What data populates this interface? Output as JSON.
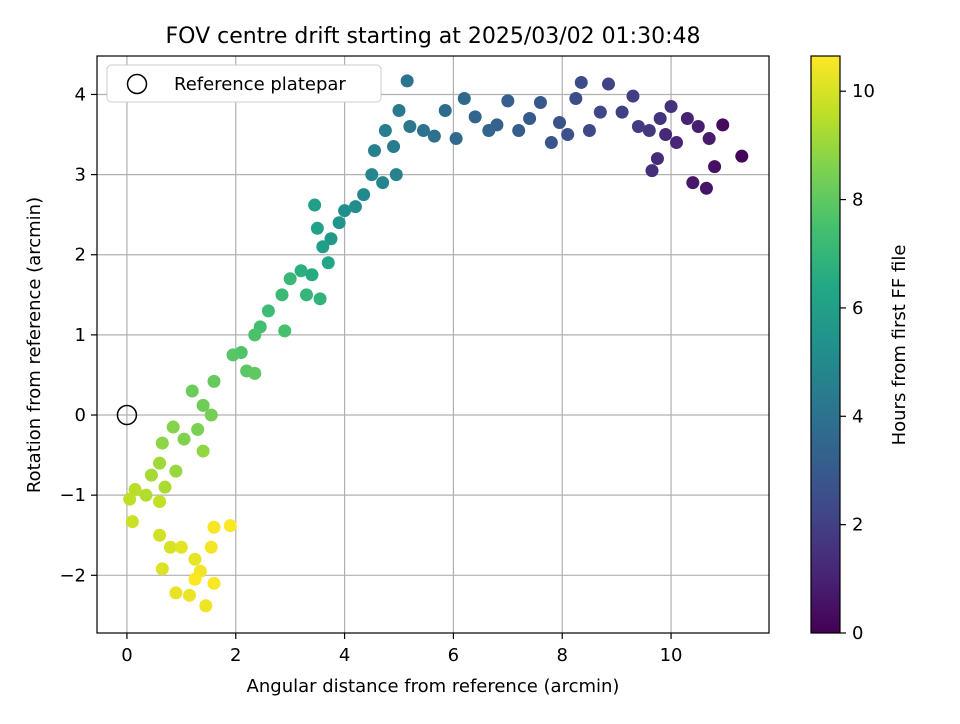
{
  "chart_data": {
    "type": "scatter",
    "title": "FOV centre drift starting at 2025/03/02 01:30:48",
    "xlabel": "Angular distance from reference (arcmin)",
    "ylabel": "Rotation from reference (arcmin)",
    "xlim": [
      -0.55,
      11.8
    ],
    "ylim": [
      -2.72,
      4.48
    ],
    "x_ticks": [
      0,
      2,
      4,
      6,
      8,
      10
    ],
    "y_ticks": [
      -2,
      -1,
      0,
      1,
      2,
      3,
      4
    ],
    "x_tick_labels": [
      "0",
      "2",
      "4",
      "6",
      "8",
      "10"
    ],
    "y_tick_labels": [
      "−2",
      "−1",
      "0",
      "1",
      "2",
      "3",
      "4"
    ],
    "grid": true,
    "legend_position": "top-left",
    "legend": [
      {
        "label": "Reference platepar",
        "marker": "open-circle"
      }
    ],
    "reference_point": {
      "x": 0,
      "y": 0
    },
    "colorbar": {
      "label": "Hours from first FF file",
      "range": [
        0,
        10.65
      ],
      "ticks": [
        0,
        2,
        4,
        6,
        8,
        10
      ],
      "tick_labels": [
        "0",
        "2",
        "4",
        "6",
        "8",
        "10"
      ],
      "colormap": "viridis"
    },
    "series": [
      {
        "points": [
          {
            "x": 11.3,
            "y": 3.23,
            "t": 0.1
          },
          {
            "x": 10.95,
            "y": 3.62,
            "t": 0.3
          },
          {
            "x": 10.8,
            "y": 3.1,
            "t": 0.5
          },
          {
            "x": 10.65,
            "y": 2.83,
            "t": 0.6
          },
          {
            "x": 10.4,
            "y": 2.9,
            "t": 0.7
          },
          {
            "x": 10.7,
            "y": 3.45,
            "t": 0.8
          },
          {
            "x": 10.5,
            "y": 3.6,
            "t": 0.9
          },
          {
            "x": 10.3,
            "y": 3.7,
            "t": 1.0
          },
          {
            "x": 10.1,
            "y": 3.4,
            "t": 1.1
          },
          {
            "x": 9.9,
            "y": 3.5,
            "t": 1.2
          },
          {
            "x": 9.75,
            "y": 3.2,
            "t": 1.3
          },
          {
            "x": 9.65,
            "y": 3.05,
            "t": 1.4
          },
          {
            "x": 10.0,
            "y": 3.85,
            "t": 1.5
          },
          {
            "x": 9.8,
            "y": 3.7,
            "t": 1.6
          },
          {
            "x": 9.6,
            "y": 3.55,
            "t": 1.7
          },
          {
            "x": 9.4,
            "y": 3.6,
            "t": 1.8
          },
          {
            "x": 9.3,
            "y": 3.98,
            "t": 1.9
          },
          {
            "x": 9.1,
            "y": 3.78,
            "t": 2.0
          },
          {
            "x": 8.85,
            "y": 4.13,
            "t": 2.1
          },
          {
            "x": 8.7,
            "y": 3.78,
            "t": 2.2
          },
          {
            "x": 8.5,
            "y": 3.55,
            "t": 2.3
          },
          {
            "x": 8.35,
            "y": 4.15,
            "t": 2.4
          },
          {
            "x": 8.25,
            "y": 3.95,
            "t": 2.5
          },
          {
            "x": 8.1,
            "y": 3.5,
            "t": 2.6
          },
          {
            "x": 7.95,
            "y": 3.65,
            "t": 2.7
          },
          {
            "x": 7.8,
            "y": 3.4,
            "t": 2.8
          },
          {
            "x": 7.6,
            "y": 3.9,
            "t": 2.9
          },
          {
            "x": 7.4,
            "y": 3.7,
            "t": 3.0
          },
          {
            "x": 7.2,
            "y": 3.55,
            "t": 3.1
          },
          {
            "x": 7.0,
            "y": 3.92,
            "t": 3.2
          },
          {
            "x": 6.8,
            "y": 3.62,
            "t": 3.3
          },
          {
            "x": 6.65,
            "y": 3.55,
            "t": 3.4
          },
          {
            "x": 6.4,
            "y": 3.72,
            "t": 3.5
          },
          {
            "x": 6.2,
            "y": 3.95,
            "t": 3.6
          },
          {
            "x": 6.05,
            "y": 3.45,
            "t": 3.7
          },
          {
            "x": 5.85,
            "y": 3.8,
            "t": 3.8
          },
          {
            "x": 5.65,
            "y": 3.48,
            "t": 3.9
          },
          {
            "x": 5.45,
            "y": 3.55,
            "t": 4.0
          },
          {
            "x": 5.15,
            "y": 4.17,
            "t": 4.1
          },
          {
            "x": 5.2,
            "y": 3.6,
            "t": 4.2
          },
          {
            "x": 5.0,
            "y": 3.8,
            "t": 4.3
          },
          {
            "x": 4.9,
            "y": 3.35,
            "t": 4.4
          },
          {
            "x": 4.75,
            "y": 3.55,
            "t": 4.5
          },
          {
            "x": 4.55,
            "y": 3.3,
            "t": 4.6
          },
          {
            "x": 4.95,
            "y": 3.0,
            "t": 4.7
          },
          {
            "x": 4.7,
            "y": 2.9,
            "t": 4.8
          },
          {
            "x": 4.5,
            "y": 3.0,
            "t": 4.9
          },
          {
            "x": 4.35,
            "y": 2.75,
            "t": 5.0
          },
          {
            "x": 4.2,
            "y": 2.6,
            "t": 5.1
          },
          {
            "x": 4.0,
            "y": 2.55,
            "t": 5.3
          },
          {
            "x": 3.9,
            "y": 2.4,
            "t": 5.5
          },
          {
            "x": 3.75,
            "y": 2.2,
            "t": 5.7
          },
          {
            "x": 3.6,
            "y": 2.1,
            "t": 5.9
          },
          {
            "x": 3.45,
            "y": 2.62,
            "t": 6.0
          },
          {
            "x": 3.5,
            "y": 2.33,
            "t": 6.1
          },
          {
            "x": 3.7,
            "y": 1.9,
            "t": 6.3
          },
          {
            "x": 3.4,
            "y": 1.75,
            "t": 6.5
          },
          {
            "x": 3.2,
            "y": 1.8,
            "t": 6.7
          },
          {
            "x": 3.55,
            "y": 1.45,
            "t": 6.9
          },
          {
            "x": 3.3,
            "y": 1.5,
            "t": 7.0
          },
          {
            "x": 3.0,
            "y": 1.7,
            "t": 7.1
          },
          {
            "x": 2.85,
            "y": 1.5,
            "t": 7.2
          },
          {
            "x": 2.6,
            "y": 1.3,
            "t": 7.3
          },
          {
            "x": 2.45,
            "y": 1.1,
            "t": 7.4
          },
          {
            "x": 2.9,
            "y": 1.05,
            "t": 7.5
          },
          {
            "x": 2.35,
            "y": 1.0,
            "t": 7.6
          },
          {
            "x": 2.1,
            "y": 0.78,
            "t": 7.7
          },
          {
            "x": 1.95,
            "y": 0.75,
            "t": 7.8
          },
          {
            "x": 2.2,
            "y": 0.55,
            "t": 7.9
          },
          {
            "x": 2.35,
            "y": 0.52,
            "t": 8.0
          },
          {
            "x": 1.6,
            "y": 0.42,
            "t": 8.1
          },
          {
            "x": 1.2,
            "y": 0.3,
            "t": 8.2
          },
          {
            "x": 1.4,
            "y": 0.12,
            "t": 8.3
          },
          {
            "x": 1.55,
            "y": 0.0,
            "t": 8.4
          },
          {
            "x": 1.3,
            "y": -0.18,
            "t": 8.5
          },
          {
            "x": 1.05,
            "y": -0.3,
            "t": 8.6
          },
          {
            "x": 0.85,
            "y": -0.15,
            "t": 8.7
          },
          {
            "x": 0.65,
            "y": -0.35,
            "t": 8.8
          },
          {
            "x": 1.4,
            "y": -0.45,
            "t": 8.9
          },
          {
            "x": 0.9,
            "y": -0.7,
            "t": 9.0
          },
          {
            "x": 0.6,
            "y": -0.6,
            "t": 9.1
          },
          {
            "x": 0.45,
            "y": -0.75,
            "t": 9.2
          },
          {
            "x": 0.7,
            "y": -0.9,
            "t": 9.3
          },
          {
            "x": 0.35,
            "y": -1.0,
            "t": 9.4
          },
          {
            "x": 0.15,
            "y": -0.93,
            "t": 9.5
          },
          {
            "x": 0.05,
            "y": -1.05,
            "t": 9.6
          },
          {
            "x": 0.6,
            "y": -1.08,
            "t": 9.7
          },
          {
            "x": 0.1,
            "y": -1.33,
            "t": 9.8
          },
          {
            "x": 0.6,
            "y": -1.5,
            "t": 9.9
          },
          {
            "x": 0.8,
            "y": -1.65,
            "t": 10.0
          },
          {
            "x": 0.65,
            "y": -1.92,
            "t": 10.1
          },
          {
            "x": 1.0,
            "y": -1.65,
            "t": 10.2
          },
          {
            "x": 1.25,
            "y": -1.8,
            "t": 10.25
          },
          {
            "x": 0.9,
            "y": -2.22,
            "t": 10.3
          },
          {
            "x": 1.15,
            "y": -2.25,
            "t": 10.35
          },
          {
            "x": 1.45,
            "y": -2.38,
            "t": 10.4
          },
          {
            "x": 1.35,
            "y": -1.95,
            "t": 10.45
          },
          {
            "x": 1.55,
            "y": -1.65,
            "t": 10.5
          },
          {
            "x": 1.6,
            "y": -1.4,
            "t": 10.55
          },
          {
            "x": 1.9,
            "y": -1.38,
            "t": 10.6
          },
          {
            "x": 1.6,
            "y": -2.1,
            "t": 10.62
          },
          {
            "x": 1.25,
            "y": -2.05,
            "t": 10.65
          }
        ]
      }
    ]
  }
}
